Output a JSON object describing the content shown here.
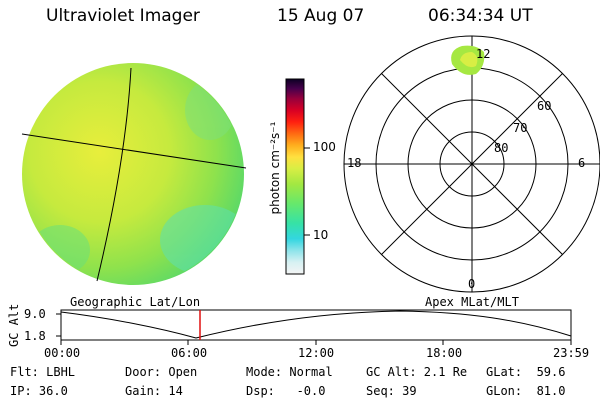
{
  "header": {
    "title": "Ultraviolet Imager",
    "date": "15 Aug 07",
    "time": "06:34:34 UT"
  },
  "colorbar": {
    "units_label": "photon cm⁻²s⁻¹",
    "ticks": [
      "100",
      "10"
    ],
    "colors": [
      "#f2f2f2",
      "#cfeff2",
      "#7fe3e8",
      "#2fd6e0",
      "#38e8a0",
      "#6ee86a",
      "#a6e840",
      "#d6ee40",
      "#ffe040",
      "#ffb020",
      "#ff7010",
      "#ff2010",
      "#e00020",
      "#a0003a",
      "#500050",
      "#10002a"
    ]
  },
  "geo_panel": {
    "label": "Geographic Lat/Lon"
  },
  "polar_panel": {
    "label": "Apex MLat/MLT",
    "mlt_labels": [
      "12",
      "18",
      "6",
      "0"
    ],
    "lat_labels": [
      "60",
      "70",
      "80"
    ]
  },
  "altitude_strip": {
    "ylabel": "GC Alt",
    "y_ticks": [
      "9.0",
      "1.8"
    ],
    "x_ticks": [
      "00:00",
      "06:00",
      "12:00",
      "18:00",
      "23:59"
    ],
    "current_marker_color": "#e01010"
  },
  "status": {
    "flt": "Flt: LBHL",
    "door": "Door: Open",
    "mode": "Mode: Normal",
    "gc_alt": "GC Alt: 2.1 Re",
    "glat": "GLat:  59.6",
    "ip": "IP: 36.0",
    "gain": "Gain: 14",
    "dsp": "Dsp:   -0.0",
    "seq": "Seq: 39",
    "glon": "GLon:  81.0"
  }
}
